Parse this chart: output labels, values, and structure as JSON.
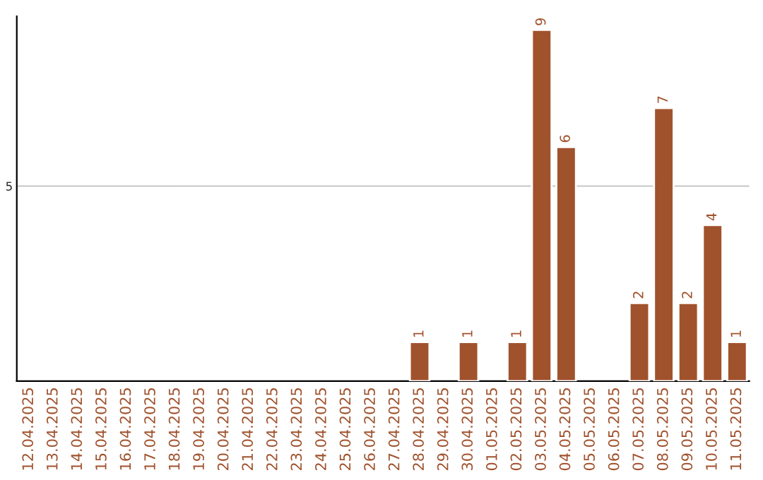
{
  "chart_data": {
    "type": "bar",
    "categories": [
      "12.04.2025",
      "13.04.2025",
      "14.04.2025",
      "15.04.2025",
      "16.04.2025",
      "17.04.2025",
      "18.04.2025",
      "19.04.2025",
      "20.04.2025",
      "21.04.2025",
      "22.04.2025",
      "23.04.2025",
      "24.04.2025",
      "25.04.2025",
      "26.04.2025",
      "27.04.2025",
      "28.04.2025",
      "29.04.2025",
      "30.04.2025",
      "01.05.2025",
      "02.05.2025",
      "03.05.2025",
      "04.05.2025",
      "05.05.2025",
      "06.05.2025",
      "07.05.2025",
      "08.05.2025",
      "09.05.2025",
      "10.05.2025",
      "11.05.2025"
    ],
    "values": [
      null,
      null,
      null,
      null,
      null,
      null,
      null,
      null,
      null,
      null,
      null,
      null,
      null,
      null,
      null,
      null,
      1,
      null,
      1,
      null,
      1,
      9,
      6,
      null,
      null,
      2,
      7,
      2,
      4,
      1
    ],
    "data_labels": true,
    "color": "#a0522d",
    "ylim": [
      0,
      9.35
    ],
    "yticks": [
      5
    ],
    "grid": "y"
  }
}
